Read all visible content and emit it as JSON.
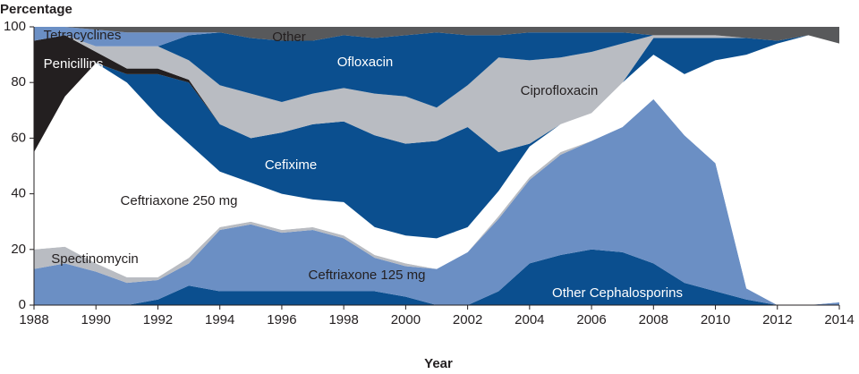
{
  "chart_data": {
    "type": "stacked-area",
    "y_label": "Percentage",
    "x_label": "Year",
    "x": [
      1988,
      1989,
      1990,
      1991,
      1992,
      1993,
      1994,
      1995,
      1996,
      1997,
      1998,
      1999,
      2000,
      2001,
      2002,
      2003,
      2004,
      2005,
      2006,
      2007,
      2008,
      2009,
      2010,
      2011,
      2012,
      2013,
      2014
    ],
    "xlim": [
      1988,
      2014
    ],
    "xticks": [
      1988,
      1990,
      1992,
      1994,
      1996,
      1998,
      2000,
      2002,
      2004,
      2006,
      2008,
      2010,
      2012,
      2014
    ],
    "ylim": [
      0,
      100
    ],
    "yticks": [
      0,
      20,
      40,
      60,
      80,
      100
    ],
    "series": [
      {
        "name": "Other Cephalosporins",
        "color": "#0b4f8f",
        "values": [
          0,
          0,
          0,
          0,
          2,
          7,
          5,
          5,
          5,
          5,
          5,
          5,
          3,
          0,
          0,
          5,
          15,
          18,
          20,
          19,
          15,
          8,
          5,
          2,
          0,
          0,
          0
        ]
      },
      {
        "name": "Ceftriaxone 125 mg",
        "color": "#6b8fc4",
        "values": [
          13,
          15,
          12,
          8,
          7,
          8,
          22,
          24,
          21,
          22,
          19,
          12,
          11,
          13,
          19,
          26,
          30,
          36,
          39,
          45,
          59,
          53,
          46,
          4,
          0,
          0,
          1
        ]
      },
      {
        "name": "Spectinomycin",
        "color": "#b9bcc2",
        "values": [
          7,
          6,
          3,
          2,
          1,
          2,
          1,
          1,
          1,
          1,
          1,
          1,
          1,
          0,
          0,
          1,
          1,
          1,
          0,
          0,
          0,
          0,
          0,
          0,
          0,
          0,
          0
        ]
      },
      {
        "name": "Ceftriaxone 250 mg",
        "color": "#ffffff",
        "values": [
          35,
          54,
          72,
          70,
          58,
          41,
          20,
          14,
          13,
          10,
          12,
          10,
          10,
          11,
          9,
          9,
          11,
          10,
          10,
          16,
          16,
          22,
          37,
          84,
          94,
          97,
          93
        ]
      },
      {
        "name": "Cefixime",
        "color": "#0b4f8f",
        "values": [
          0,
          0,
          0,
          3,
          15,
          22,
          17,
          16,
          22,
          27,
          29,
          33,
          33,
          35,
          36,
          14,
          1,
          0,
          0,
          0,
          6,
          13,
          8,
          6,
          1,
          0,
          0
        ]
      },
      {
        "name": "Penicillins",
        "color": "#231f20",
        "values": [
          40,
          22,
          4,
          2,
          2,
          1,
          0,
          0,
          0,
          0,
          0,
          0,
          0,
          0,
          0,
          0,
          0,
          0,
          0,
          0,
          0,
          0,
          0,
          0,
          0,
          0,
          0
        ]
      },
      {
        "name": "Ciprofloxacin",
        "color": "#b9bcc2",
        "values": [
          0,
          0,
          2,
          8,
          8,
          7,
          14,
          16,
          11,
          11,
          12,
          15,
          17,
          12,
          15,
          34,
          30,
          24,
          22,
          14,
          1,
          1,
          1,
          0,
          0,
          0,
          0
        ]
      },
      {
        "name": "Ofloxacin",
        "color": "#0b4f8f",
        "values": [
          0,
          0,
          0,
          0,
          0,
          9,
          19,
          20,
          22,
          19,
          19,
          20,
          22,
          27,
          18,
          8,
          10,
          9,
          7,
          4,
          0,
          0,
          0,
          0,
          0,
          0,
          0
        ]
      },
      {
        "name": "Tetracyclines",
        "color": "#6b8fc4",
        "values": [
          5,
          3,
          6,
          5,
          5,
          1,
          0,
          0,
          0,
          0,
          0,
          0,
          0,
          0,
          0,
          0,
          0,
          0,
          0,
          0,
          0,
          0,
          0,
          0,
          0,
          0,
          0
        ]
      },
      {
        "name": "Other",
        "color": "#58595b",
        "values": [
          0,
          0,
          1,
          2,
          2,
          2,
          2,
          4,
          5,
          5,
          3,
          4,
          3,
          2,
          3,
          3,
          2,
          2,
          2,
          2,
          3,
          3,
          3,
          4,
          5,
          3,
          6
        ]
      }
    ]
  }
}
